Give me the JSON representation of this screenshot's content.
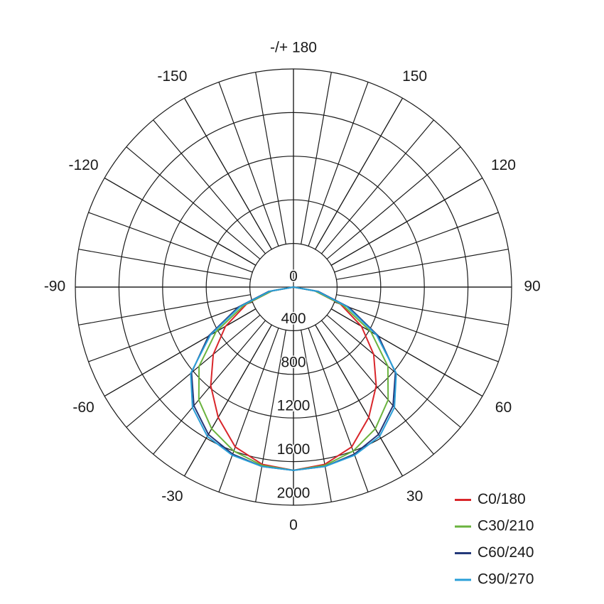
{
  "chart_data": {
    "type": "polar",
    "x": [
      -90,
      -80,
      -70,
      -60,
      -50,
      -40,
      -30,
      -20,
      -10,
      0,
      10,
      20,
      30,
      40,
      50,
      60,
      70,
      80,
      90
    ],
    "series": [
      {
        "name": "C0/180",
        "color": "#d9262b",
        "values": [
          0,
          200,
          460,
          720,
          960,
          1180,
          1380,
          1560,
          1650,
          1680,
          1650,
          1560,
          1380,
          1180,
          960,
          720,
          460,
          200,
          0
        ]
      },
      {
        "name": "C30/210",
        "color": "#6ab33e",
        "values": [
          0,
          200,
          480,
          820,
          1130,
          1350,
          1500,
          1600,
          1660,
          1680,
          1660,
          1600,
          1500,
          1350,
          1130,
          820,
          480,
          200,
          0
        ]
      },
      {
        "name": "C60/240",
        "color": "#23397a",
        "values": [
          0,
          230,
          540,
          900,
          1220,
          1420,
          1560,
          1630,
          1670,
          1680,
          1670,
          1630,
          1560,
          1420,
          1220,
          900,
          540,
          230,
          0
        ]
      },
      {
        "name": "C90/270",
        "color": "#2a9fd8",
        "values": [
          0,
          220,
          520,
          880,
          1230,
          1440,
          1580,
          1640,
          1670,
          1680,
          1670,
          1640,
          1580,
          1440,
          1230,
          880,
          520,
          220,
          0
        ]
      }
    ],
    "rlim": [
      0,
      2000
    ],
    "rticks": [
      0,
      400,
      800,
      1200,
      1600,
      2000
    ],
    "angleticks": [
      {
        "value": 180,
        "label": "-/+ 180"
      },
      -150,
      -120,
      -90,
      -60,
      -30,
      0,
      30,
      60,
      90,
      120,
      150
    ],
    "legend": "bottom-right"
  }
}
